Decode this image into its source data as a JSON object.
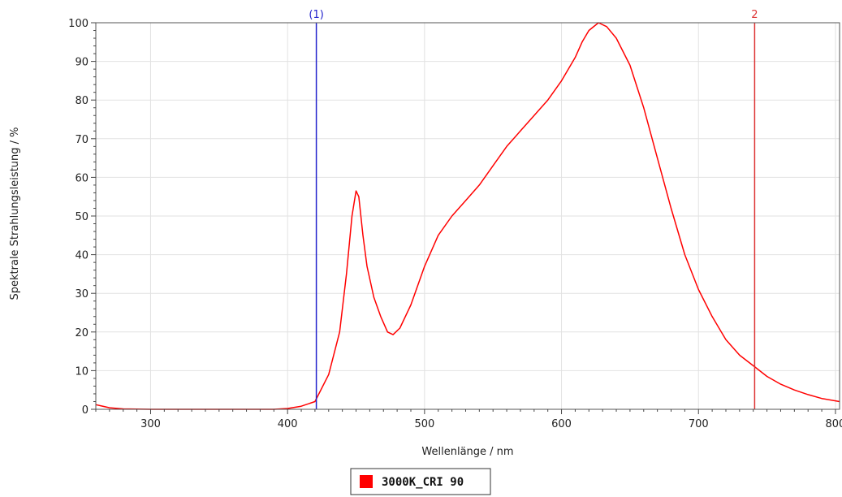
{
  "chart_data": {
    "type": "line",
    "xlabel": "Wellenlänge / nm",
    "ylabel": "Spektrale Strahlungsleistung / %",
    "xlim": [
      260,
      803
    ],
    "ylim": [
      0,
      100
    ],
    "x_ticks": [
      300,
      400,
      500,
      600,
      700,
      800
    ],
    "y_ticks": [
      0,
      10,
      20,
      30,
      40,
      50,
      60,
      70,
      80,
      90,
      100
    ],
    "grid": true,
    "legend_position": "bottom-center",
    "series": [
      {
        "name": "3000K_CRI 90",
        "color": "#ff0000",
        "points": [
          [
            260,
            1.2
          ],
          [
            270,
            0.4
          ],
          [
            280,
            0.1
          ],
          [
            300,
            0
          ],
          [
            350,
            0
          ],
          [
            390,
            0
          ],
          [
            400,
            0.2
          ],
          [
            410,
            0.8
          ],
          [
            420,
            2
          ],
          [
            430,
            9
          ],
          [
            438,
            20
          ],
          [
            443,
            35
          ],
          [
            447,
            50
          ],
          [
            450,
            56.5
          ],
          [
            452,
            55
          ],
          [
            455,
            45
          ],
          [
            458,
            37
          ],
          [
            463,
            29
          ],
          [
            468,
            24
          ],
          [
            473,
            20
          ],
          [
            477,
            19.3
          ],
          [
            482,
            21
          ],
          [
            490,
            27
          ],
          [
            500,
            37
          ],
          [
            510,
            45
          ],
          [
            520,
            50
          ],
          [
            530,
            54
          ],
          [
            540,
            58
          ],
          [
            550,
            63
          ],
          [
            560,
            68
          ],
          [
            570,
            72
          ],
          [
            580,
            76
          ],
          [
            590,
            80
          ],
          [
            600,
            85
          ],
          [
            610,
            91
          ],
          [
            615,
            95
          ],
          [
            620,
            98
          ],
          [
            627,
            100
          ],
          [
            633,
            99
          ],
          [
            640,
            96
          ],
          [
            650,
            89
          ],
          [
            660,
            78
          ],
          [
            670,
            65
          ],
          [
            680,
            52
          ],
          [
            690,
            40
          ],
          [
            700,
            31
          ],
          [
            710,
            24
          ],
          [
            720,
            18
          ],
          [
            730,
            14
          ],
          [
            741,
            11
          ],
          [
            750,
            8.5
          ],
          [
            760,
            6.5
          ],
          [
            770,
            5
          ],
          [
            780,
            3.8
          ],
          [
            790,
            2.8
          ],
          [
            803,
            2
          ]
        ]
      }
    ],
    "markers": [
      {
        "label": "(1)",
        "x": 421,
        "color": "#2222cc"
      },
      {
        "label": "2",
        "x": 741,
        "color": "#dd3333"
      }
    ]
  }
}
